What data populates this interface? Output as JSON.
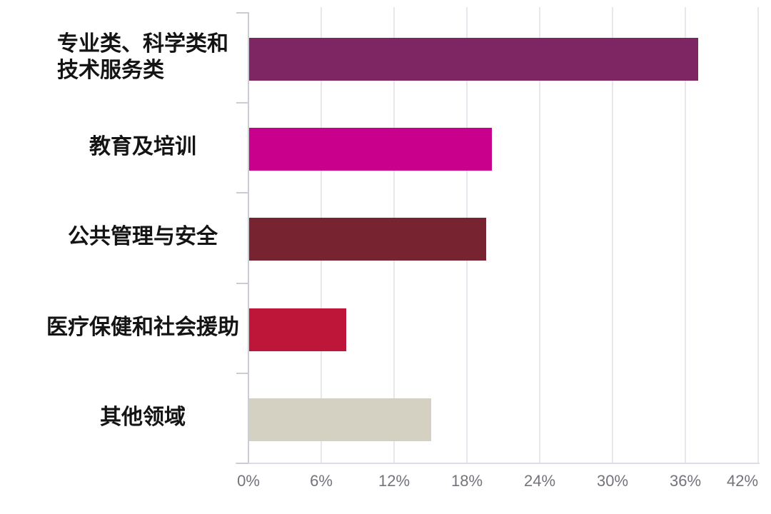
{
  "chart_data": {
    "type": "bar",
    "orientation": "horizontal",
    "title": "",
    "xlabel": "",
    "ylabel": "",
    "categories": [
      "专业类、科学类和\n技术服务类",
      "教育及培训",
      "公共管理与安全",
      "医疗保健和社会援助",
      "其他领域"
    ],
    "values": [
      37,
      20,
      19.5,
      8,
      15
    ],
    "value_unit": "%",
    "bar_colors": [
      "#7E2563",
      "#C9008C",
      "#782330",
      "#BE1638",
      "#D4D1C3"
    ],
    "xlim": [
      0,
      42
    ],
    "x_ticks": [
      {
        "value": 0,
        "label": "0%"
      },
      {
        "value": 6,
        "label": "6%"
      },
      {
        "value": 12,
        "label": "12%"
      },
      {
        "value": 18,
        "label": "18%"
      },
      {
        "value": 24,
        "label": "24%"
      },
      {
        "value": 30,
        "label": "30%"
      },
      {
        "value": 36,
        "label": "36%"
      },
      {
        "value": 42,
        "label": "42%"
      }
    ],
    "grid": true,
    "legend": false,
    "colors": {
      "background": "#ffffff",
      "gridline": "#e7e7ed",
      "axis": "#ccccd6",
      "tick_label": "#73737b",
      "category_label": "#141414"
    }
  }
}
